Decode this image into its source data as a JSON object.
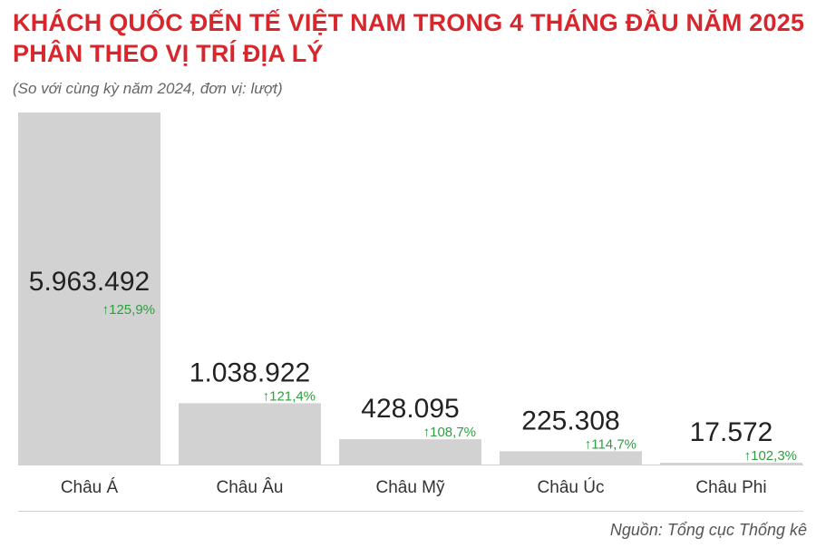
{
  "header": {
    "title_line1": "KHÁCH QUỐC ĐẾN TẾ VIỆT NAM TRONG 4 THÁNG ĐẦU NĂM 2025",
    "title_line2": "PHÂN THEO VỊ TRÍ ĐỊA LÝ",
    "subtitle": "(So với cùng kỳ năm 2024, đơn vị: lượt)"
  },
  "footer": {
    "source": "Nguồn: Tổng cục Thống kê"
  },
  "colors": {
    "title": "#d7262c",
    "bar": "#d2d2d2",
    "growth": "#2e9e3e",
    "value_text": "#222222"
  },
  "chart_data": {
    "type": "bar",
    "categories": [
      "Châu Á",
      "Châu Âu",
      "Châu Mỹ",
      "Châu Úc",
      "Châu Phi"
    ],
    "values": [
      5963492,
      1038922,
      428095,
      225308,
      17572
    ],
    "value_labels": [
      "5.963.492",
      "1.038.922",
      "428.095",
      "225.308",
      "17.572"
    ],
    "growth_labels": [
      "125,9%",
      "121,4%",
      "108,7%",
      "114,7%",
      "102,3%"
    ],
    "growth_direction": "up",
    "title": "KHÁCH QUỐC ĐẾN TẾ VIỆT NAM TRONG 4 THÁNG ĐẦU NĂM 2025 PHÂN THEO VỊ TRÍ ĐỊA LÝ",
    "xlabel": "",
    "ylabel": "",
    "ylim": [
      0,
      5963492
    ],
    "grid": false,
    "legend": "none"
  }
}
